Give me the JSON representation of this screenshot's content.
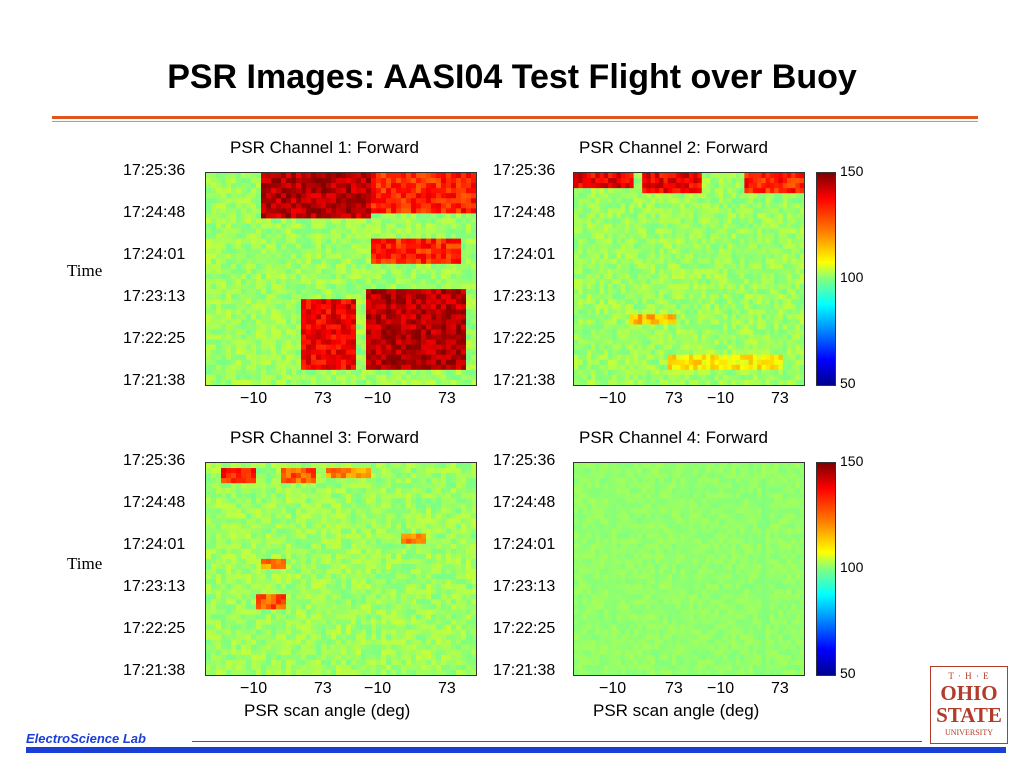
{
  "title": "PSR Images: AASI04 Test Flight over Buoy",
  "time_label": "Time",
  "y_ticks": [
    "17:25:36",
    "17:24:48",
    "17:24:01",
    "17:23:13",
    "17:22:25",
    "17:21:38"
  ],
  "x_ticks": [
    "−10",
    "73",
    "−10",
    "73"
  ],
  "x_label": "PSR scan angle (deg)",
  "colorbar": {
    "max": "150",
    "mid": "100",
    "min": "50"
  },
  "footer": "ElectroScience Lab",
  "logo": {
    "the": "T · H · E",
    "line1": "OHIO",
    "line2": "STATE",
    "line3": "UNIVERSITY"
  },
  "colors": {
    "accent": "#e0551e",
    "footer_blue": "#1a3fd6",
    "logo_red": "#b23b2a"
  },
  "chart_data": [
    {
      "type": "heatmap",
      "title": "PSR Channel 1: Forward",
      "ylabel": "Time",
      "xlabel": "",
      "x_tick_labels": [
        "−10",
        "73",
        "−10",
        "73"
      ],
      "y_tick_labels": [
        "17:25:36",
        "17:24:48",
        "17:24:01",
        "17:23:13",
        "17:22:25",
        "17:21:38"
      ],
      "color_range": [
        50,
        150
      ],
      "hot_regions": [
        {
          "x0": 0.2,
          "x1": 0.62,
          "y0": 0.0,
          "y1": 0.22,
          "level": 150
        },
        {
          "x0": 0.62,
          "x1": 1.0,
          "y0": 0.0,
          "y1": 0.2,
          "level": 140
        },
        {
          "x0": 0.6,
          "x1": 0.97,
          "y0": 0.55,
          "y1": 0.92,
          "level": 150
        },
        {
          "x0": 0.35,
          "x1": 0.55,
          "y0": 0.6,
          "y1": 0.92,
          "level": 145
        },
        {
          "x0": 0.62,
          "x1": 0.95,
          "y0": 0.3,
          "y1": 0.42,
          "level": 140
        }
      ]
    },
    {
      "type": "heatmap",
      "title": "PSR Channel 2: Forward",
      "x_tick_labels": [
        "−10",
        "73",
        "−10",
        "73"
      ],
      "y_tick_labels": [
        "17:25:36",
        "17:24:48",
        "17:24:01",
        "17:23:13",
        "17:22:25",
        "17:21:38"
      ],
      "color_range": [
        50,
        150
      ],
      "hot_regions": [
        {
          "x0": 0.0,
          "x1": 0.25,
          "y0": 0.0,
          "y1": 0.06,
          "level": 145
        },
        {
          "x0": 0.3,
          "x1": 0.55,
          "y0": 0.0,
          "y1": 0.1,
          "level": 145
        },
        {
          "x0": 0.75,
          "x1": 1.0,
          "y0": 0.0,
          "y1": 0.1,
          "level": 140
        },
        {
          "x0": 0.25,
          "x1": 0.45,
          "y0": 0.66,
          "y1": 0.71,
          "level": 125
        },
        {
          "x0": 0.4,
          "x1": 0.9,
          "y0": 0.85,
          "y1": 0.93,
          "level": 120
        }
      ]
    },
    {
      "type": "heatmap",
      "title": "PSR Channel 3: Forward",
      "xlabel": "PSR scan angle (deg)",
      "ylabel": "Time",
      "x_tick_labels": [
        "−10",
        "73",
        "−10",
        "73"
      ],
      "y_tick_labels": [
        "17:25:36",
        "17:24:48",
        "17:24:01",
        "17:23:13",
        "17:22:25",
        "17:21:38"
      ],
      "color_range": [
        50,
        150
      ],
      "hot_regions": [
        {
          "x0": 0.06,
          "x1": 0.18,
          "y0": 0.03,
          "y1": 0.1,
          "level": 140
        },
        {
          "x0": 0.28,
          "x1": 0.4,
          "y0": 0.03,
          "y1": 0.1,
          "level": 135
        },
        {
          "x0": 0.45,
          "x1": 0.62,
          "y0": 0.03,
          "y1": 0.08,
          "level": 130
        },
        {
          "x0": 0.2,
          "x1": 0.3,
          "y0": 0.45,
          "y1": 0.5,
          "level": 130
        },
        {
          "x0": 0.18,
          "x1": 0.3,
          "y0": 0.62,
          "y1": 0.68,
          "level": 135
        },
        {
          "x0": 0.72,
          "x1": 0.82,
          "y0": 0.33,
          "y1": 0.37,
          "level": 130
        }
      ]
    },
    {
      "type": "heatmap",
      "title": "PSR Channel 4: Forward",
      "xlabel": "PSR scan angle (deg)",
      "x_tick_labels": [
        "−10",
        "73",
        "−10",
        "73"
      ],
      "y_tick_labels": [
        "17:25:36",
        "17:24:48",
        "17:24:01",
        "17:23:13",
        "17:22:25",
        "17:21:38"
      ],
      "color_range": [
        50,
        150
      ],
      "hot_regions": []
    }
  ]
}
